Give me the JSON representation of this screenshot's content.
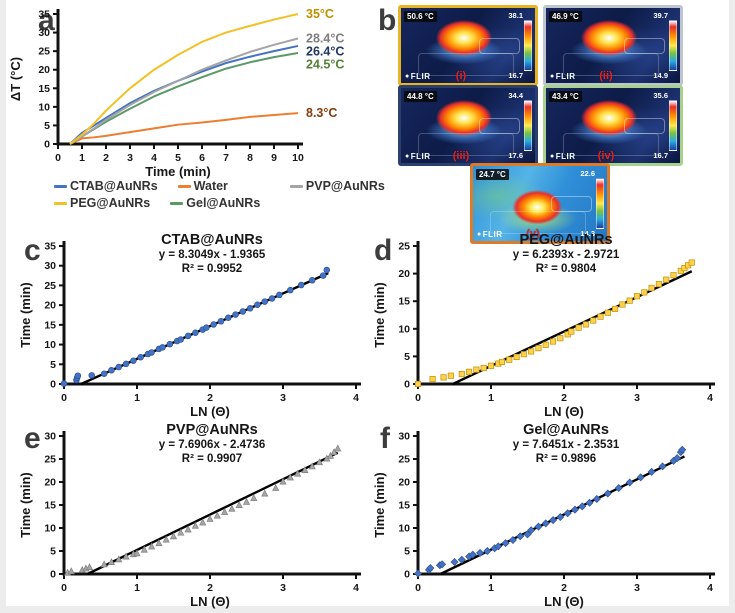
{
  "panel_labels": {
    "a": "a",
    "b": "b",
    "c": "c",
    "d": "d",
    "e": "e",
    "f": "f"
  },
  "chart_data": [
    {
      "id": "a",
      "type": "line",
      "title": "",
      "xlabel": "Time (min)",
      "ylabel": "ΔT (°C)",
      "xlim": [
        0,
        10
      ],
      "ylim": [
        0,
        35
      ],
      "xticks": [
        0,
        1,
        2,
        3,
        4,
        5,
        6,
        7,
        8,
        9,
        10
      ],
      "yticks": [
        0,
        5,
        10,
        15,
        20,
        25,
        30,
        35
      ],
      "grid": false,
      "x": [
        0.5,
        1,
        1.5,
        2,
        3,
        4,
        5,
        6,
        7,
        8,
        9,
        10
      ],
      "series": [
        {
          "name": "Water",
          "color": "#ed7d31",
          "values": [
            0,
            1.5,
            1.8,
            2.2,
            3.2,
            4.2,
            5.2,
            5.8,
            6.5,
            7.3,
            7.8,
            8.3
          ]
        },
        {
          "name": "Gel@AuNRs",
          "color": "#5b9a68",
          "values": [
            0,
            2,
            4,
            6,
            9.5,
            12.8,
            15.5,
            18,
            20.3,
            22,
            23.4,
            24.5
          ]
        },
        {
          "name": "CTAB@AuNRs",
          "color": "#4472c4",
          "values": [
            0,
            3,
            5,
            7,
            11,
            14.3,
            17,
            19.5,
            21.8,
            23.5,
            25,
            26.4
          ]
        },
        {
          "name": "PVP@AuNRs",
          "color": "#a5a5a5",
          "values": [
            0,
            2,
            4.2,
            6.5,
            10.5,
            14,
            17,
            20,
            22.5,
            24.8,
            26.7,
            28.4
          ]
        },
        {
          "name": "PEG@AuNRs",
          "color": "#f2c126",
          "values": [
            0,
            2.5,
            5.5,
            9,
            15,
            20,
            24,
            27.5,
            30,
            31.8,
            33.5,
            35
          ]
        }
      ],
      "annotations": [
        {
          "text": "35°C",
          "color": "#bf9000",
          "value": 35
        },
        {
          "text": "28.4°C",
          "color": "#7f7f7f",
          "value": 28.4
        },
        {
          "text": "26.4°C",
          "color": "#1f3864",
          "value": 26.4
        },
        {
          "text": "24.5°C",
          "color": "#538135",
          "value": 24.5
        },
        {
          "text": "8.3°C",
          "color": "#843c0c",
          "value": 8.3
        }
      ],
      "legend": {
        "position": "below",
        "rows": [
          [
            {
              "label": "CTAB@AuNRs",
              "color": "#4472c4"
            },
            {
              "label": "Water",
              "color": "#ed7d31"
            },
            {
              "label": "PVP@AuNRs",
              "color": "#a5a5a5"
            }
          ],
          [
            {
              "label": "PEG@AuNRs",
              "color": "#f2c126"
            },
            {
              "label": "Gel@AuNRs",
              "color": "#5b9a68"
            }
          ]
        ]
      }
    },
    {
      "id": "c",
      "type": "scatter",
      "title": "CTAB@AuNRs",
      "equation": "y = 8.3049x - 1.9365",
      "r2": "R² = 0.9952",
      "marker": "circle",
      "color": "#4472c4",
      "edge": "#2f5496",
      "xlabel": "LN (Θ)",
      "ylabel": "Time (min)",
      "xlim": [
        0,
        4
      ],
      "ylim": [
        0,
        35
      ],
      "xticks": [
        0,
        1,
        2,
        3,
        4
      ],
      "yticks": [
        0,
        5,
        10,
        15,
        20,
        25,
        30,
        35
      ],
      "fit": {
        "slope": 8.3049,
        "intercept": -1.9365,
        "x_end": 3.62
      },
      "points": [
        [
          0,
          0.1
        ],
        [
          0.17,
          1
        ],
        [
          0.18,
          1.6
        ],
        [
          0.19,
          2.1
        ],
        [
          0.38,
          2.2
        ],
        [
          0.55,
          2.6
        ],
        [
          0.65,
          3.5
        ],
        [
          0.75,
          4.3
        ],
        [
          0.85,
          5.1
        ],
        [
          0.95,
          5.9
        ],
        [
          1.05,
          6.8
        ],
        [
          1.15,
          7.6
        ],
        [
          1.2,
          8
        ],
        [
          1.3,
          8.9
        ],
        [
          1.35,
          9.3
        ],
        [
          1.45,
          10.1
        ],
        [
          1.55,
          10.9
        ],
        [
          1.6,
          11.3
        ],
        [
          1.7,
          12.2
        ],
        [
          1.8,
          13
        ],
        [
          1.9,
          13.8
        ],
        [
          1.95,
          14.3
        ],
        [
          2.05,
          15.1
        ],
        [
          2.15,
          15.9
        ],
        [
          2.25,
          16.8
        ],
        [
          2.35,
          17.6
        ],
        [
          2.45,
          18.4
        ],
        [
          2.55,
          19.2
        ],
        [
          2.65,
          20.1
        ],
        [
          2.75,
          20.9
        ],
        [
          2.85,
          21.7
        ],
        [
          2.95,
          22.6
        ],
        [
          3.1,
          23.8
        ],
        [
          3.25,
          25.1
        ],
        [
          3.4,
          26.3
        ],
        [
          3.55,
          27.5
        ],
        [
          3.6,
          28.9
        ]
      ]
    },
    {
      "id": "d",
      "type": "scatter",
      "title": "PEG@AuNRs",
      "equation": "y = 6.2393x - 2.9721",
      "r2": "R² = 0.9804",
      "marker": "square",
      "color": "#ffd24d",
      "edge": "#bf9000",
      "xlabel": "LN (Θ)",
      "ylabel": "Time (min)",
      "xlim": [
        0,
        4
      ],
      "ylim": [
        0,
        25
      ],
      "xticks": [
        0,
        1,
        2,
        3,
        4
      ],
      "yticks": [
        0,
        5,
        10,
        15,
        20,
        25
      ],
      "fit": {
        "slope": 6.2393,
        "intercept": -2.9721,
        "x_end": 3.75
      },
      "points": [
        [
          0,
          0
        ],
        [
          0.2,
          0.9
        ],
        [
          0.35,
          1.2
        ],
        [
          0.45,
          1.5
        ],
        [
          0.6,
          1.8
        ],
        [
          0.7,
          2.2
        ],
        [
          0.8,
          2.6
        ],
        [
          0.9,
          2.9
        ],
        [
          1,
          3.3
        ],
        [
          1.1,
          3.7
        ],
        [
          1.15,
          4
        ],
        [
          1.25,
          4.4
        ],
        [
          1.35,
          4.9
        ],
        [
          1.45,
          5.4
        ],
        [
          1.55,
          5.9
        ],
        [
          1.65,
          6.5
        ],
        [
          1.75,
          7.1
        ],
        [
          1.85,
          7.7
        ],
        [
          1.95,
          8.3
        ],
        [
          2.05,
          9
        ],
        [
          2.1,
          9.5
        ],
        [
          2.2,
          10.2
        ],
        [
          2.3,
          10.8
        ],
        [
          2.4,
          11.5
        ],
        [
          2.5,
          12.2
        ],
        [
          2.6,
          12.9
        ],
        [
          2.7,
          13.6
        ],
        [
          2.8,
          14.4
        ],
        [
          2.9,
          15.1
        ],
        [
          3,
          15.9
        ],
        [
          3.1,
          16.6
        ],
        [
          3.2,
          17.4
        ],
        [
          3.3,
          18.1
        ],
        [
          3.4,
          18.9
        ],
        [
          3.5,
          19.7
        ],
        [
          3.6,
          20.5
        ],
        [
          3.65,
          21
        ],
        [
          3.7,
          21.5
        ],
        [
          3.75,
          22
        ]
      ]
    },
    {
      "id": "e",
      "type": "scatter",
      "title": "PVP@AuNRs",
      "equation": "y = 7.6906x - 2.4736",
      "r2": "R² = 0.9907",
      "marker": "triangle",
      "color": "#a6a6a6",
      "edge": "#7f7f7f",
      "xlabel": "LN (Θ)",
      "ylabel": "Time (min)",
      "xlim": [
        0,
        4
      ],
      "ylim": [
        0,
        30
      ],
      "xticks": [
        0,
        1,
        2,
        3,
        4
      ],
      "yticks": [
        0,
        5,
        10,
        15,
        20,
        25,
        30
      ],
      "fit": {
        "slope": 7.6906,
        "intercept": -2.4736,
        "x_end": 3.75
      },
      "points": [
        [
          0.05,
          0.3
        ],
        [
          0.1,
          0.6
        ],
        [
          0.25,
          0.9
        ],
        [
          0.3,
          1.2
        ],
        [
          0.35,
          1.5
        ],
        [
          0.55,
          2.1
        ],
        [
          0.65,
          2.6
        ],
        [
          0.75,
          3.2
        ],
        [
          0.85,
          3.8
        ],
        [
          0.95,
          4.3
        ],
        [
          1,
          4.5
        ],
        [
          1.1,
          5.3
        ],
        [
          1.2,
          6
        ],
        [
          1.3,
          6.7
        ],
        [
          1.4,
          7.5
        ],
        [
          1.5,
          8.2
        ],
        [
          1.6,
          9
        ],
        [
          1.7,
          9.7
        ],
        [
          1.8,
          10.5
        ],
        [
          1.9,
          11.2
        ],
        [
          2,
          12
        ],
        [
          2.1,
          12.7
        ],
        [
          2.2,
          13.5
        ],
        [
          2.3,
          14.2
        ],
        [
          2.4,
          15
        ],
        [
          2.5,
          15.7
        ],
        [
          2.6,
          16.5
        ],
        [
          2.75,
          17.5
        ],
        [
          2.9,
          18.7
        ],
        [
          3,
          20.1
        ],
        [
          3.1,
          21
        ],
        [
          3.2,
          21.8
        ],
        [
          3.3,
          22.6
        ],
        [
          3.4,
          23.4
        ],
        [
          3.5,
          24.3
        ],
        [
          3.6,
          25.1
        ],
        [
          3.65,
          25.7
        ],
        [
          3.7,
          26.5
        ],
        [
          3.75,
          27.3
        ]
      ]
    },
    {
      "id": "f",
      "type": "scatter",
      "title": "Gel@AuNRs",
      "equation": "y = 7.6451x - 2.3531",
      "r2": "R² = 0.9896",
      "marker": "diamond",
      "color": "#4472c4",
      "edge": "#2f5496",
      "xlabel": "LN (Θ)",
      "ylabel": "Time (min)",
      "xlim": [
        0,
        4
      ],
      "ylim": [
        0,
        30
      ],
      "xticks": [
        0,
        1,
        2,
        3,
        4
      ],
      "yticks": [
        0,
        5,
        10,
        15,
        20,
        25,
        30
      ],
      "fit": {
        "slope": 7.6451,
        "intercept": -2.3531,
        "x_end": 3.65
      },
      "points": [
        [
          0,
          0.1
        ],
        [
          0.15,
          0.9
        ],
        [
          0.17,
          1.3
        ],
        [
          0.3,
          1.9
        ],
        [
          0.33,
          2.1
        ],
        [
          0.5,
          2.6
        ],
        [
          0.6,
          3.1
        ],
        [
          0.7,
          3.8
        ],
        [
          0.75,
          4.2
        ],
        [
          0.85,
          4.6
        ],
        [
          0.95,
          5
        ],
        [
          1.05,
          5.6
        ],
        [
          1.1,
          6
        ],
        [
          1.2,
          6.7
        ],
        [
          1.3,
          7.4
        ],
        [
          1.4,
          8.2
        ],
        [
          1.5,
          8.6
        ],
        [
          1.55,
          9.5
        ],
        [
          1.65,
          10.3
        ],
        [
          1.75,
          11
        ],
        [
          1.85,
          11.7
        ],
        [
          1.95,
          12.4
        ],
        [
          2.05,
          13.2
        ],
        [
          2.15,
          14
        ],
        [
          2.25,
          14.7
        ],
        [
          2.35,
          15.5
        ],
        [
          2.45,
          16.3
        ],
        [
          2.6,
          17.5
        ],
        [
          2.75,
          18.7
        ],
        [
          2.9,
          19.9
        ],
        [
          3.05,
          21
        ],
        [
          3.2,
          22.2
        ],
        [
          3.35,
          23.4
        ],
        [
          3.5,
          24.6
        ],
        [
          3.55,
          25.2
        ],
        [
          3.6,
          26.5
        ],
        [
          3.62,
          27
        ]
      ]
    }
  ],
  "thermal_panel": {
    "images": [
      {
        "label": "(i)",
        "max_temp": "50.6 °C",
        "scale_max": "38.1",
        "scale_min": "16.7",
        "border": "#e7b424",
        "logo": "FLIR",
        "variant": "cold"
      },
      {
        "label": "(ii)",
        "max_temp": "46.9 °C",
        "scale_max": "39.7",
        "scale_min": "14.9",
        "border": "#bfc5cf",
        "logo": "FLIR",
        "variant": "cold"
      },
      {
        "label": "(iii)",
        "max_temp": "44.8 °C",
        "scale_max": "34.4",
        "scale_min": "17.6",
        "border": "#2b3f68",
        "logo": "FLIR",
        "variant": "cold"
      },
      {
        "label": "(iv)",
        "max_temp": "43.4 °C",
        "scale_max": "35.6",
        "scale_min": "16.7",
        "border": "#a9d18e",
        "logo": "FLIR",
        "variant": "cold"
      },
      {
        "label": "(v)",
        "max_temp": "24.7 °C",
        "scale_max": "22.6",
        "scale_min": "14.3",
        "border": "#dd7b29",
        "logo": "FLIR",
        "variant": "warm"
      }
    ]
  }
}
